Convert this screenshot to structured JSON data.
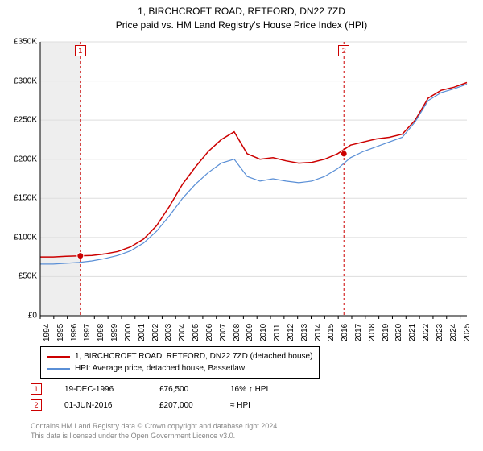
{
  "title": {
    "line1": "1, BIRCHCROFT ROAD, RETFORD, DN22 7ZD",
    "line2": "Price paid vs. HM Land Registry's House Price Index (HPI)"
  },
  "chart": {
    "type": "line",
    "background_color": "#ffffff",
    "grid_color": "#dddddd",
    "axis_color": "#000000",
    "y": {
      "min": 0,
      "max": 350000,
      "ticks": [
        0,
        50000,
        100000,
        150000,
        200000,
        250000,
        300000,
        350000
      ],
      "tick_labels": [
        "£0",
        "£50K",
        "£100K",
        "£150K",
        "£200K",
        "£250K",
        "£300K",
        "£350K"
      ],
      "label_fontsize": 10
    },
    "x": {
      "min": 1994,
      "max": 2025.5,
      "ticks": [
        1994,
        1995,
        1996,
        1997,
        1998,
        1999,
        2000,
        2001,
        2002,
        2003,
        2004,
        2005,
        2006,
        2007,
        2008,
        2009,
        2010,
        2011,
        2012,
        2013,
        2014,
        2015,
        2016,
        2017,
        2018,
        2019,
        2020,
        2021,
        2022,
        2023,
        2024,
        2025
      ],
      "label_fontsize": 10
    },
    "series": [
      {
        "id": "price_paid",
        "label": "1, BIRCHCROFT ROAD, RETFORD, DN22 7ZD (detached house)",
        "color": "#cc0000",
        "line_width": 1.5,
        "data_y": [
          75000,
          75000,
          76000,
          76500,
          77000,
          79000,
          82000,
          88000,
          98000,
          115000,
          140000,
          168000,
          190000,
          210000,
          225000,
          235000,
          207000,
          200000,
          202000,
          198000,
          195000,
          196000,
          200000,
          207000,
          218000,
          222000,
          226000,
          228000,
          232000,
          250000,
          278000,
          288000,
          292000,
          298000
        ]
      },
      {
        "id": "hpi",
        "label": "HPI: Average price, detached house, Bassetlaw",
        "color": "#5a8fd6",
        "line_width": 1.2,
        "data_y": [
          66000,
          66000,
          67000,
          68000,
          70000,
          73000,
          77000,
          83000,
          93000,
          108000,
          128000,
          150000,
          168000,
          183000,
          195000,
          200000,
          178000,
          172000,
          175000,
          172000,
          170000,
          172000,
          178000,
          188000,
          202000,
          210000,
          216000,
          222000,
          228000,
          248000,
          275000,
          285000,
          290000,
          296000
        ]
      }
    ],
    "markers": [
      {
        "n": "1",
        "year": 1996.96,
        "price": 76500,
        "vline_color": "#cc0000",
        "vline_dash": "3,3",
        "shade_to_start": true,
        "shade_color": "#eeeeee"
      },
      {
        "n": "2",
        "year": 2016.42,
        "price": 207000,
        "vline_color": "#cc0000",
        "vline_dash": "3,3"
      }
    ],
    "marker_dot": {
      "radius": 4,
      "fill": "#cc0000",
      "stroke": "#ffffff"
    }
  },
  "legend": {
    "border_color": "#000000",
    "fontsize": 10
  },
  "transactions": [
    {
      "n": "1",
      "date": "19-DEC-1996",
      "price": "£76,500",
      "pct": "16% ↑ HPI"
    },
    {
      "n": "2",
      "date": "01-JUN-2016",
      "price": "£207,000",
      "pct": "≈ HPI"
    }
  ],
  "attribution": {
    "line1": "Contains HM Land Registry data © Crown copyright and database right 2024.",
    "line2": "This data is licensed under the Open Government Licence v3.0."
  }
}
